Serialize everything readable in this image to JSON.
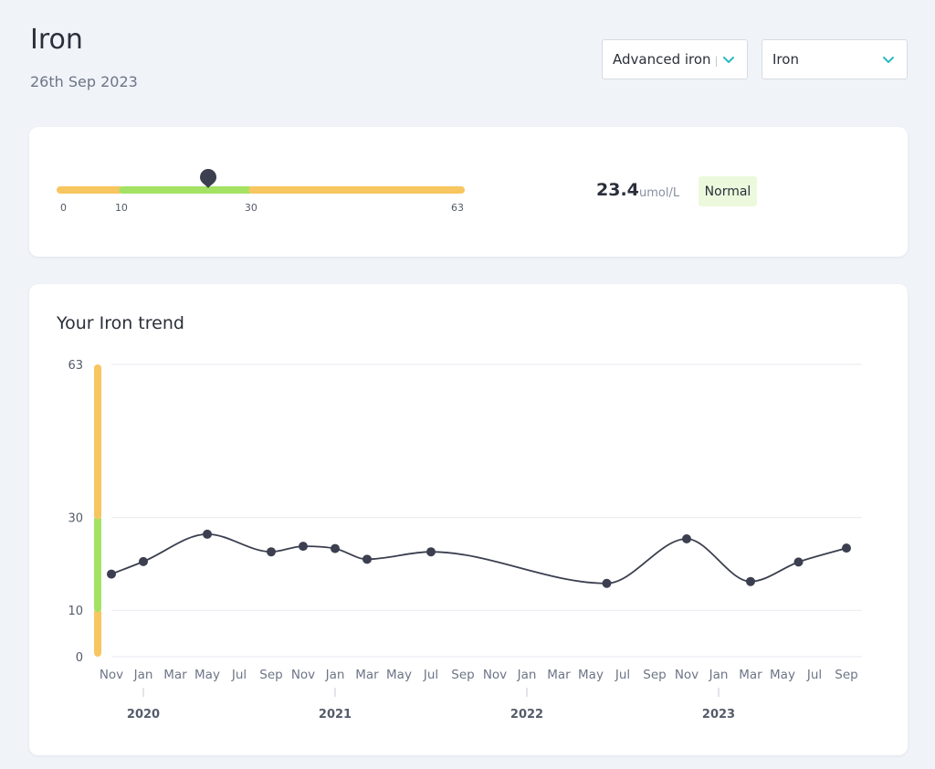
{
  "header": {
    "title": "Iron",
    "date": "26th Sep 2023"
  },
  "filters": {
    "panel_select": "Advanced iron p",
    "marker_select": "Iron"
  },
  "result": {
    "value": "23.4",
    "unit": "umol/L",
    "status": "Normal",
    "range_ticks": [
      "0",
      "10",
      "30",
      "63"
    ],
    "range_bounds": [
      0,
      10,
      30,
      63
    ],
    "value_numeric": 23.4,
    "colors": {
      "out_of_range": "#f7c660",
      "normal": "#a3e263",
      "marker": "#3b3f4f"
    }
  },
  "trend": {
    "title": "Your Iron trend"
  },
  "chart_data": {
    "type": "line",
    "title": "Your Iron trend",
    "y_ticks": [
      "63",
      "30",
      "10",
      "0"
    ],
    "ylim": [
      0,
      63
    ],
    "y_band_bounds": [
      0,
      10,
      30,
      63
    ],
    "month_labels": [
      "Nov",
      "Jan",
      "Mar",
      "May",
      "Jul",
      "Sep",
      "Nov",
      "Jan",
      "Mar",
      "May",
      "Jul",
      "Sep",
      "Nov",
      "Jan",
      "Mar",
      "May",
      "Jul",
      "Sep",
      "Nov",
      "Jan",
      "Mar",
      "May",
      "Jul",
      "Sep"
    ],
    "year_labels": [
      "2020",
      "2021",
      "2022",
      "2023"
    ],
    "x": [
      "2019-11",
      "2020-01",
      "2020-05",
      "2020-09",
      "2020-11",
      "2021-01",
      "2021-03",
      "2021-07",
      "2022-06",
      "2022-11",
      "2023-03",
      "2023-06",
      "2023-09"
    ],
    "series": [
      {
        "values": [
          17.8,
          20.5,
          26.4,
          22.6,
          23.8,
          23.3,
          21.0,
          22.6,
          15.8,
          25.4,
          16.2,
          20.4,
          23.4
        ]
      }
    ],
    "grid": true,
    "line_color": "#3b3f4f"
  }
}
